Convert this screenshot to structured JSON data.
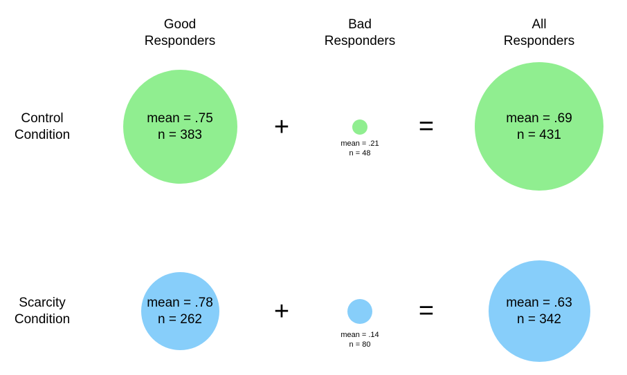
{
  "columns": [
    {
      "line1": "Good",
      "line2": "Responders"
    },
    {
      "line1": "Bad",
      "line2": "Responders"
    },
    {
      "line1": "All",
      "line2": "Responders"
    }
  ],
  "rows": [
    {
      "line1": "Control",
      "line2": "Condition"
    },
    {
      "line1": "Scarcity",
      "line2": "Condition"
    }
  ],
  "colors": {
    "control": "#90ee90",
    "scarcity": "#87cefa"
  },
  "operators": {
    "plus": "+",
    "equals": "="
  },
  "control": {
    "good": {
      "mean": "mean = .75",
      "n": "n = 383"
    },
    "bad": {
      "mean": "mean = .21",
      "n": "n = 48"
    },
    "all": {
      "mean": "mean = .69",
      "n": "n = 431"
    }
  },
  "scarcity": {
    "good": {
      "mean": "mean = .78",
      "n": "n = 262"
    },
    "bad": {
      "mean": "mean = .14",
      "n": "n = 80"
    },
    "all": {
      "mean": "mean = .63",
      "n": "n = 342"
    }
  }
}
